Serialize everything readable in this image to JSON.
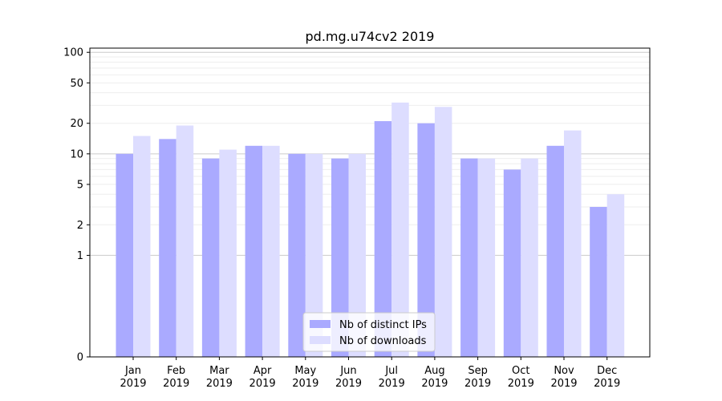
{
  "chart_data": {
    "type": "bar",
    "title": "pd.mg.u74cv2 2019",
    "scale": "symlog",
    "categories": [
      [
        "Jan",
        "2019"
      ],
      [
        "Feb",
        "2019"
      ],
      [
        "Mar",
        "2019"
      ],
      [
        "Apr",
        "2019"
      ],
      [
        "May",
        "2019"
      ],
      [
        "Jun",
        "2019"
      ],
      [
        "Jul",
        "2019"
      ],
      [
        "Aug",
        "2019"
      ],
      [
        "Sep",
        "2019"
      ],
      [
        "Oct",
        "2019"
      ],
      [
        "Nov",
        "2019"
      ],
      [
        "Dec",
        "2019"
      ]
    ],
    "series": [
      {
        "name": "Nb of distinct IPs",
        "color": "#aaaaff",
        "values": [
          10,
          14,
          9,
          12,
          10,
          9,
          21,
          20,
          9,
          7,
          12,
          3
        ]
      },
      {
        "name": "Nb of downloads",
        "color": "#ddddff",
        "values": [
          15,
          19,
          11,
          12,
          10,
          10,
          32,
          29,
          9,
          9,
          17,
          4
        ]
      }
    ],
    "yticks": [
      {
        "value": 0,
        "label": "0"
      },
      {
        "value": 1,
        "label": "1"
      },
      {
        "value": 2,
        "label": "2"
      },
      {
        "value": 5,
        "label": "5"
      },
      {
        "value": 10,
        "label": "10"
      },
      {
        "value": 20,
        "label": "20"
      },
      {
        "value": 50,
        "label": "50"
      },
      {
        "value": 100,
        "label": "100"
      }
    ],
    "ylim": [
      0,
      110
    ],
    "legend_position": "lower-center"
  }
}
